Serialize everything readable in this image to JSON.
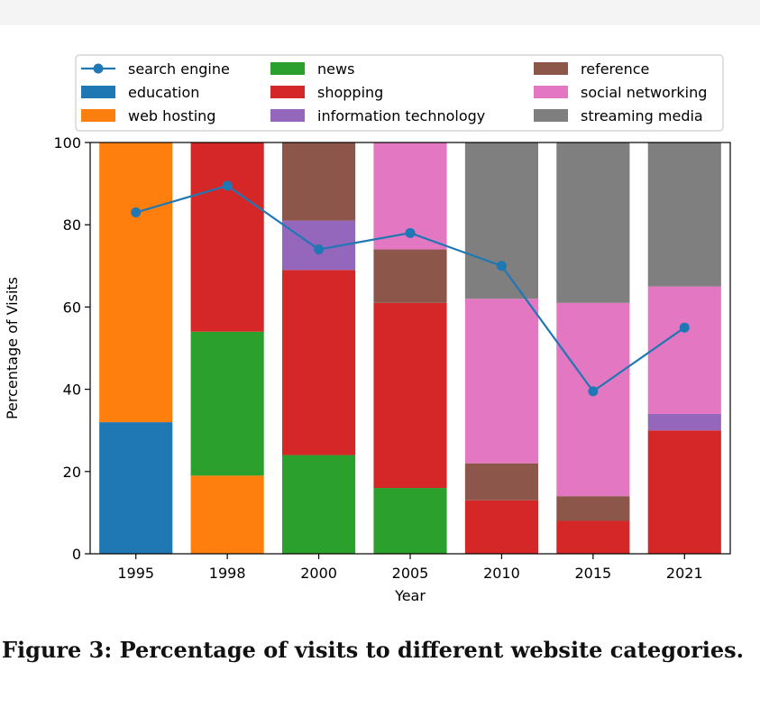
{
  "figure": {
    "caption": "Figure 3: Percentage of visits to different website categories."
  },
  "chart_data": {
    "type": "bar",
    "stacked": true,
    "categories": [
      "1995",
      "1998",
      "2000",
      "2005",
      "2010",
      "2015",
      "2021"
    ],
    "xlabel": "Year",
    "ylabel": "Percentage of Visits",
    "ylim": [
      0,
      100
    ],
    "yticks": [
      0,
      20,
      40,
      60,
      80,
      100
    ],
    "grid": false,
    "legend_position": "top, above plot, 3 columns",
    "series": [
      {
        "name": "education",
        "color": "#1f77b4",
        "values": [
          32,
          0,
          0,
          0,
          0,
          0,
          0
        ]
      },
      {
        "name": "web hosting",
        "color": "#ff7f0e",
        "values": [
          68,
          19,
          0,
          0,
          0,
          0,
          0
        ]
      },
      {
        "name": "news",
        "color": "#2ca02c",
        "values": [
          0,
          35,
          24,
          16,
          0,
          0,
          0
        ]
      },
      {
        "name": "shopping",
        "color": "#d62728",
        "values": [
          0,
          46,
          45,
          45,
          13,
          8,
          30
        ]
      },
      {
        "name": "information technology",
        "color": "#9467bd",
        "values": [
          0,
          0,
          12,
          0,
          0,
          0,
          4
        ]
      },
      {
        "name": "reference",
        "color": "#8c564b",
        "values": [
          0,
          0,
          19,
          13,
          9,
          6,
          0
        ]
      },
      {
        "name": "social networking",
        "color": "#e377c2",
        "values": [
          0,
          0,
          0,
          26,
          40,
          47,
          31
        ]
      },
      {
        "name": "streaming media",
        "color": "#7f7f7f",
        "values": [
          0,
          0,
          0,
          0,
          38,
          39,
          35
        ]
      }
    ],
    "line_series": {
      "name": "search engine",
      "color": "#1f77b4",
      "marker": "circle",
      "values": [
        83,
        89.5,
        74,
        78,
        70,
        39.5,
        55
      ]
    },
    "legend_order": [
      "search engine",
      "education",
      "web hosting",
      "news",
      "shopping",
      "information technology",
      "reference",
      "social networking",
      "streaming media"
    ]
  }
}
